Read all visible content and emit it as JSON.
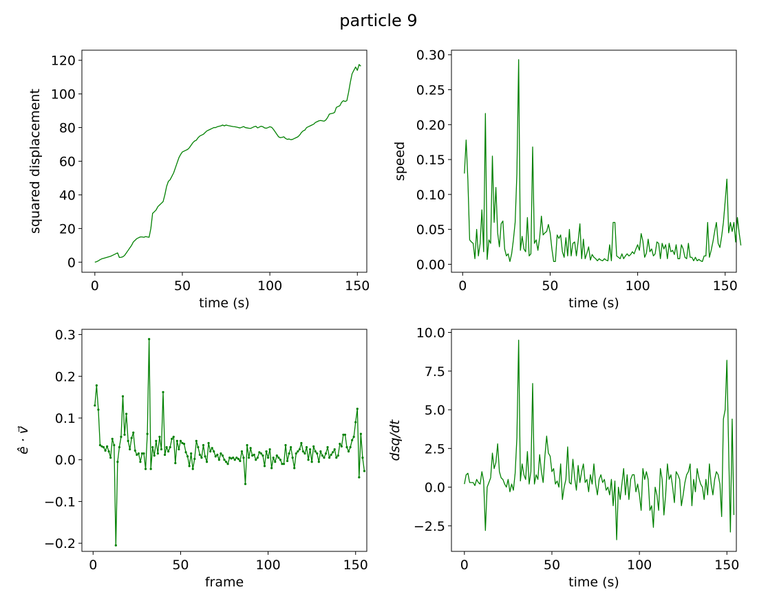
{
  "figure": {
    "title": "particle 9",
    "line_color": "#008000"
  },
  "chart_data": [
    {
      "type": "line",
      "id": "sq",
      "xlabel": "time (s)",
      "ylabel": "squared displacement",
      "xlim": [
        -7.4,
        155.4
      ],
      "ylim": [
        -6,
        126
      ],
      "xticks": [
        0,
        50,
        100,
        150
      ],
      "yticks": [
        0,
        20,
        40,
        60,
        80,
        100,
        120
      ],
      "ytick_labels": [
        "0",
        "20",
        "40",
        "60",
        "80",
        "100",
        "120"
      ],
      "markers": false,
      "x_start": 0,
      "x_step": 1,
      "values": [
        0,
        0.3,
        0.8,
        1.5,
        2,
        2.3,
        2.6,
        2.9,
        3.2,
        3.5,
        4,
        4.5,
        5,
        5.5,
        2.8,
        2.9,
        3.2,
        4,
        5.5,
        7,
        8.5,
        10,
        12,
        13,
        14,
        14.5,
        15,
        15,
        14.8,
        15.2,
        15,
        14.8,
        20,
        29,
        30,
        31,
        33,
        34,
        35,
        36,
        40,
        45,
        48,
        49,
        51,
        53,
        56,
        59,
        62,
        64,
        65.5,
        66,
        66.5,
        67,
        68,
        69.5,
        71,
        72,
        72.5,
        74,
        75,
        75.5,
        76,
        77,
        78,
        78.5,
        79,
        79.5,
        80,
        80,
        80.5,
        80.8,
        81,
        81.5,
        81,
        81.5,
        81.2,
        81,
        80.8,
        80.6,
        80.5,
        80.3,
        80,
        79.8,
        80.2,
        80.6,
        80,
        79.8,
        79.6,
        79.5,
        80,
        80.5,
        80.8,
        79.8,
        80.3,
        80.8,
        80.5,
        79.8,
        79.6,
        80,
        80.5,
        80.2,
        79,
        77.5,
        76,
        74.5,
        74,
        74.2,
        74.5,
        73.5,
        73,
        73.2,
        72.8,
        73,
        73.5,
        74,
        74.5,
        75.5,
        77,
        78,
        78.5,
        80,
        80.5,
        81,
        81.5,
        82,
        83,
        83.5,
        84,
        84.2,
        84,
        83.8,
        84.5,
        86,
        88,
        88.3,
        88.5,
        89,
        92,
        92.5,
        93,
        95,
        96,
        95.5,
        96,
        101,
        107,
        112,
        114,
        116,
        114,
        117.5,
        116.5
      ]
    },
    {
      "type": "line",
      "id": "speed",
      "xlabel": "time (s)",
      "ylabel": "speed",
      "xlim": [
        -6.4,
        156.4
      ],
      "ylim": [
        -0.0114,
        0.3066
      ],
      "xticks": [
        0,
        50,
        100,
        150
      ],
      "yticks": [
        0,
        0.05,
        0.1,
        0.15,
        0.2,
        0.25,
        0.3
      ],
      "ytick_labels": [
        "0.00",
        "0.05",
        "0.10",
        "0.15",
        "0.20",
        "0.25",
        "0.30"
      ],
      "markers": false,
      "x_start": 1,
      "x_step": 1,
      "values": [
        0.13,
        0.178,
        0.12,
        0.035,
        0.032,
        0.03,
        0.008,
        0.05,
        0.012,
        0.03,
        0.078,
        0.018,
        0.216,
        0.007,
        0.035,
        0.03,
        0.155,
        0.06,
        0.11,
        0.045,
        0.025,
        0.058,
        0.062,
        0.022,
        0.012,
        0.015,
        0.004,
        0.015,
        0.035,
        0.06,
        0.13,
        0.293,
        0.02,
        0.04,
        0.022,
        0.018,
        0.067,
        0.012,
        0.015,
        0.168,
        0.03,
        0.035,
        0.02,
        0.038,
        0.069,
        0.042,
        0.045,
        0.047,
        0.057,
        0.045,
        0.022,
        0.004,
        0.004,
        0.042,
        0.037,
        0.042,
        0.018,
        0.01,
        0.038,
        0.012,
        0.05,
        0.012,
        0.03,
        0.032,
        0.012,
        0.033,
        0.058,
        0.008,
        0.036,
        0.008,
        0.016,
        0.025,
        0.006,
        0.014,
        0.01,
        0.008,
        0.005,
        0.008,
        0.006,
        0.005,
        0.008,
        0.006,
        0.005,
        0.028,
        0.005,
        0.06,
        0.06,
        0.012,
        0.01,
        0.008,
        0.015,
        0.008,
        0.012,
        0.015,
        0.012,
        0.014,
        0.018,
        0.015,
        0.022,
        0.028,
        0.02,
        0.044,
        0.033,
        0.01,
        0.016,
        0.036,
        0.018,
        0.022,
        0.012,
        0.015,
        0.032,
        0.03,
        0.008,
        0.03,
        0.022,
        0.028,
        0.008,
        0.03,
        0.018,
        0.02,
        0.014,
        0.028,
        0.008,
        0.008,
        0.028,
        0.022,
        0.01,
        0.008,
        0.03,
        0.01,
        0.01,
        0.005,
        0.01,
        0.005,
        0.007,
        0.005,
        0.004,
        0.012,
        0.012,
        0.06,
        0.01,
        0.02,
        0.032,
        0.047,
        0.06,
        0.03,
        0.024,
        0.04,
        0.06,
        0.09,
        0.122,
        0.045,
        0.06,
        0.047,
        0.06,
        0.032,
        0.067,
        0.045,
        0.027
      ]
    },
    {
      "type": "line",
      "id": "edotv",
      "xlabel": "frame",
      "ylabel": "ê · v⃗",
      "xlim": [
        -6.4,
        156.4
      ],
      "ylim": [
        -0.2195,
        0.3125
      ],
      "xticks": [
        0,
        50,
        100,
        150
      ],
      "yticks": [
        -0.2,
        -0.1,
        0,
        0.1,
        0.2,
        0.3
      ],
      "ytick_labels": [
        "−0.2",
        "−0.1",
        "0.0",
        "0.1",
        "0.2",
        "0.3"
      ],
      "markers": true,
      "x_start": 1,
      "x_step": 1,
      "values": [
        0.13,
        0.178,
        0.12,
        0.035,
        0.032,
        0.03,
        0.022,
        0.032,
        0.02,
        0.005,
        0.05,
        0.035,
        -0.205,
        -0.005,
        0.03,
        0.055,
        0.152,
        0.06,
        0.11,
        0.045,
        0.025,
        0.052,
        0.065,
        0.022,
        0.012,
        0.015,
        -0.005,
        0.015,
        0.015,
        -0.022,
        0.062,
        0.289,
        -0.022,
        0.03,
        0.01,
        0.045,
        0.015,
        0.055,
        0.025,
        0.162,
        0.012,
        0.03,
        0.02,
        0.03,
        0.05,
        0.055,
        -0.008,
        0.045,
        0.025,
        0.045,
        0.04,
        0.038,
        0.018,
        0.008,
        -0.015,
        0.015,
        -0.022,
        0.002,
        0.045,
        0.03,
        0.012,
        0.005,
        0.035,
        0.008,
        -0.005,
        0.04,
        0.02,
        0.028,
        0.02,
        0.008,
        0.012,
        0,
        0.015,
        0.01,
        0,
        -0.005,
        -0.01,
        0.005,
        0.003,
        0.005,
        0,
        0.005,
        0.002,
        -0.003,
        0.02,
        0.005,
        -0.058,
        0.035,
        0.005,
        0.028,
        0.01,
        0.012,
        0,
        0.005,
        0.018,
        0.015,
        0.01,
        -0.015,
        0.02,
        0.005,
        0.025,
        -0.02,
        0.005,
        -0.005,
        0.01,
        0.005,
        0,
        -0.01,
        -0.01,
        0.035,
        -0.003,
        0.015,
        0.03,
        0.005,
        -0.02,
        0.015,
        0.02,
        0.025,
        0.04,
        0.02,
        0.015,
        0.03,
        0,
        0.025,
        -0.005,
        0.032,
        0.02,
        0.015,
        -0.005,
        0.02,
        0.01,
        0.005,
        0.015,
        0.03,
        0.005,
        0.012,
        0.018,
        0.025,
        0.005,
        0.01,
        0.038,
        0.032,
        0.06,
        0.06,
        0.03,
        0.02,
        0.03,
        0.047,
        0.055,
        0.09,
        0.122,
        -0.042,
        0.062,
        0.005,
        -0.027
      ]
    },
    {
      "type": "line",
      "id": "dsqdt",
      "xlabel": "time (s)",
      "ylabel": "dsq/dt",
      "xlim": [
        -7.4,
        155.4
      ],
      "ylim": [
        -4.15,
        10.2
      ],
      "xticks": [
        0,
        50,
        100,
        150
      ],
      "yticks": [
        -2.5,
        0,
        2.5,
        5,
        7.5,
        10
      ],
      "ytick_labels": [
        "−2.5",
        "0.0",
        "2.5",
        "5.0",
        "7.5",
        "10.0"
      ],
      "markers": false,
      "x_start": 0,
      "x_step": 1,
      "values": [
        0.2,
        0.8,
        0.9,
        0.3,
        0.3,
        0.3,
        0.1,
        0.5,
        0.3,
        0.2,
        1,
        0.4,
        -2.8,
        0,
        0.3,
        0.6,
        2.2,
        1.2,
        1.6,
        2.8,
        1,
        0.6,
        0.5,
        0.2,
        0,
        0.5,
        -0.3,
        0.2,
        -0.2,
        0.9,
        3.2,
        9.5,
        0.4,
        1.5,
        0.8,
        0.5,
        2.3,
        0.2,
        1,
        6.7,
        0.2,
        0.8,
        0.5,
        2.1,
        1,
        0.3,
        2,
        3.3,
        2.2,
        2,
        1,
        1.2,
        0.2,
        0.4,
        0,
        1.5,
        -0.8,
        0,
        0.5,
        2.6,
        0.3,
        0.2,
        1.8,
        0.6,
        -0.2,
        1.4,
        0.3,
        1,
        1.5,
        0.3,
        0.5,
        -0.3,
        0.8,
        0.2,
        1.5,
        0.2,
        -0.5,
        0.5,
        0.8,
        0.3,
        0.5,
        -0.2,
        0,
        -0.5,
        0.5,
        -1.2,
        0.4,
        -3.4,
        0,
        -0.8,
        0.2,
        1.2,
        -0.5,
        0.8,
        -0.8,
        0.5,
        0.8,
        0.8,
        -0.3,
        0.2,
        -0.5,
        -1.5,
        1.2,
        0.5,
        1,
        0.5,
        -1.5,
        -1.2,
        -2.6,
        0,
        -0.5,
        -1.5,
        1.2,
        0.5,
        -1.8,
        -0.5,
        1.5,
        0.5,
        0.8,
        0,
        -1,
        1,
        0.8,
        0.5,
        -1.2,
        -0.5,
        0.3,
        0.8,
        1,
        1.5,
        -1.2,
        0.5,
        -0.3,
        1.2,
        0.6,
        0.2,
        0,
        -0.8,
        0.5,
        -0.5,
        1.5,
        0.2,
        -0.5,
        0.5,
        1,
        0.8,
        0.2,
        -1.9,
        4.4,
        5,
        8.2,
        2.4,
        -2.9,
        4.4,
        -1.8
      ]
    }
  ]
}
